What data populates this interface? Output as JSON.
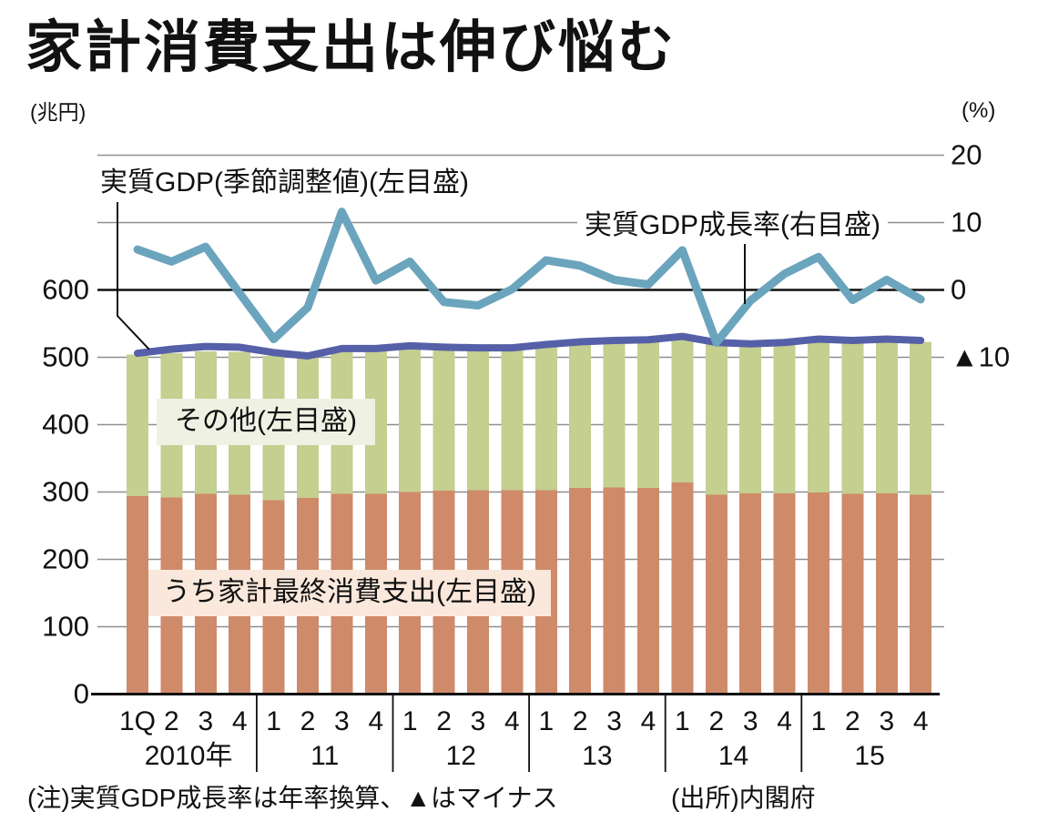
{
  "title": "家計消費支出は伸び悩む",
  "left_axis": {
    "unit": "(兆円)",
    "ticks": [
      {
        "label": "600",
        "value": 600
      },
      {
        "label": "500",
        "value": 500
      },
      {
        "label": "400",
        "value": 400
      },
      {
        "label": "300",
        "value": 300
      },
      {
        "label": "200",
        "value": 200
      },
      {
        "label": "100",
        "value": 100
      },
      {
        "label": "0",
        "value": 0
      }
    ]
  },
  "right_axis": {
    "unit": "(%)",
    "ticks": [
      {
        "label": "20",
        "value": 20
      },
      {
        "label": "10",
        "value": 10
      },
      {
        "label": "0",
        "value": 0
      },
      {
        "label": "▲10",
        "value": -10
      }
    ]
  },
  "labels": {
    "gdp_line": "実質GDP(季節調整値)(左目盛)",
    "growth_line": "実質GDP成長率(右目盛)",
    "other": "その他(左目盛)",
    "consumption": "うち家計最終消費支出(左目盛)"
  },
  "x_axis": {
    "quarters": [
      "1Q",
      "2",
      "3",
      "4",
      "1",
      "2",
      "3",
      "4",
      "1",
      "2",
      "3",
      "4",
      "1",
      "2",
      "3",
      "4",
      "1",
      "2",
      "3",
      "4",
      "1",
      "2",
      "3",
      "4"
    ],
    "years": [
      "2010年",
      "11",
      "12",
      "13",
      "14",
      "15"
    ]
  },
  "footnote": {
    "note": "(注)実質GDP成長率は年率換算、▲はマイナス",
    "source": "(出所)内閣府"
  },
  "colors": {
    "bar_consumption": "#cf8a6a",
    "bar_other": "#c4cf90",
    "line_gdp": "#5660a8",
    "line_growth": "#6ba4bd",
    "grid": "#8f8f8f",
    "axis": "#111111",
    "box_other": "#eff1e3",
    "box_consumption": "#f9e8db"
  },
  "chart_data": {
    "type": "bar",
    "subtype": "stacked-bars-with-two-lines",
    "title": "家計消費支出は伸び悩む",
    "categories": [
      "2010Q1",
      "2010Q2",
      "2010Q3",
      "2010Q4",
      "2011Q1",
      "2011Q2",
      "2011Q3",
      "2011Q4",
      "2012Q1",
      "2012Q2",
      "2012Q3",
      "2012Q4",
      "2013Q1",
      "2013Q2",
      "2013Q3",
      "2013Q4",
      "2014Q1",
      "2014Q2",
      "2014Q3",
      "2014Q4",
      "2015Q1",
      "2015Q2",
      "2015Q3",
      "2015Q4"
    ],
    "series": [
      {
        "name": "うち家計最終消費支出(左目盛)",
        "type": "bar",
        "stack": "total",
        "axis": "left",
        "unit": "兆円",
        "values": [
          294,
          292,
          297,
          296,
          288,
          291,
          297,
          297,
          300,
          302,
          303,
          303,
          303,
          306,
          307,
          306,
          314,
          296,
          298,
          298,
          299,
          297,
          298,
          296
        ]
      },
      {
        "name": "その他(左目盛)",
        "type": "bar",
        "stack": "total",
        "axis": "left",
        "unit": "兆円",
        "values": [
          210,
          214,
          212,
          212,
          214,
          208,
          212,
          213,
          214,
          211,
          209,
          209,
          214,
          215,
          216,
          218,
          215,
          223,
          219,
          221,
          225,
          226,
          227,
          227
        ]
      },
      {
        "name": "実質GDP(季節調整値)(左目盛)",
        "type": "line",
        "axis": "left",
        "unit": "兆円",
        "values": [
          506,
          512,
          516,
          515,
          507,
          502,
          513,
          513,
          517,
          515,
          514,
          514,
          519,
          523,
          525,
          526,
          531,
          522,
          520,
          522,
          527,
          525,
          527,
          525
        ]
      },
      {
        "name": "実質GDP成長率(右目盛)",
        "type": "line",
        "axis": "right",
        "unit": "%",
        "values": [
          6.0,
          4.2,
          6.4,
          -0.5,
          -7.3,
          -2.6,
          11.6,
          1.4,
          4.2,
          -1.8,
          -2.3,
          0.1,
          4.4,
          3.6,
          1.5,
          0.8,
          5.9,
          -7.8,
          -1.6,
          2.4,
          4.9,
          -1.5,
          1.5,
          -1.4
        ]
      }
    ],
    "xlabel": "",
    "ylabel_left": "兆円",
    "ylabel_right": "%",
    "left_ylim": [
      0,
      800
    ],
    "right_ylim": [
      -15,
      25
    ],
    "grid": true,
    "legend_position": "inline-annotations"
  }
}
